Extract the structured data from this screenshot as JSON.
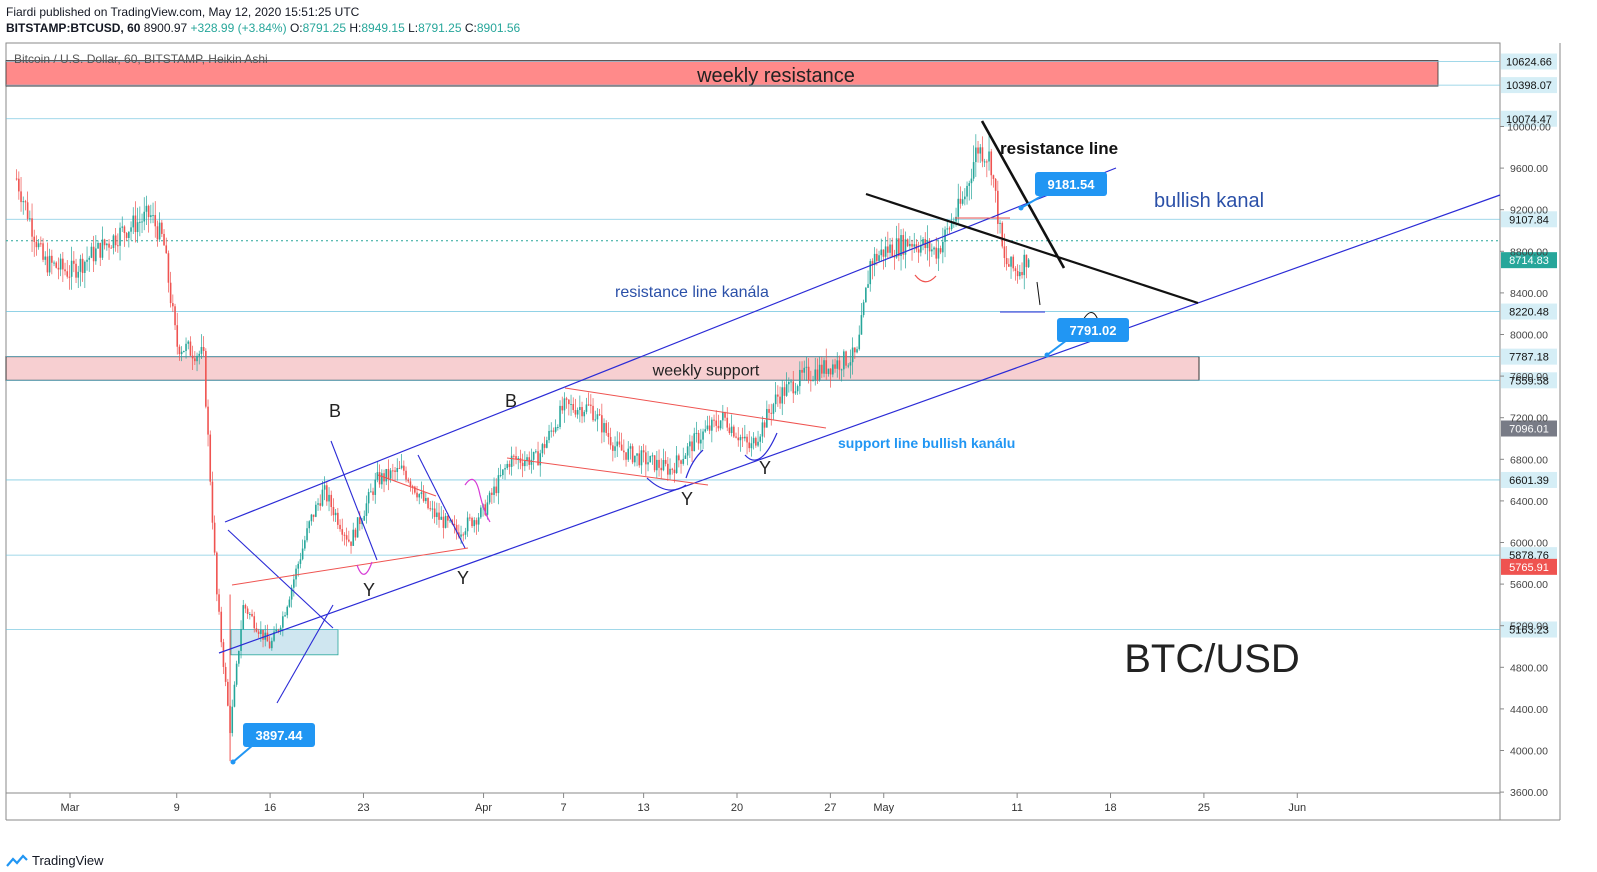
{
  "header": {
    "publisher_line": "Fiardi published on TradingView.com, May 12, 2020 15:51:25 UTC",
    "symbol": "BITSTAMP:BTCUSD, 60",
    "last": "8900.97",
    "change": "+328.99 (+3.84%)",
    "o_label": "O:",
    "o": "8791.25",
    "h_label": "H:",
    "h": "8949.15",
    "l_label": "L:",
    "l": "8791.25",
    "c_label": "C:",
    "c": "8901.56"
  },
  "footer": {
    "brand": "TradingView"
  },
  "colors": {
    "up": "#26a69a",
    "down": "#ef5350",
    "trend": "#2b2bd6",
    "accent": "#2196f3"
  },
  "chart_data": {
    "type": "candlestick",
    "title": "Bitcoin / U.S. Dollar, 60, BITSTAMP, Heikin Ashi",
    "watermark": "BTC/USD",
    "ylim": [
      3600,
      10900
    ],
    "x_ticks": [
      "Mar",
      "9",
      "16",
      "23",
      "Apr",
      "7",
      "13",
      "20",
      "27",
      "May",
      "11",
      "18",
      "25",
      "Jun"
    ],
    "y_ticks": [
      3600,
      4000,
      4400,
      4800,
      5200,
      5600,
      6000,
      6400,
      6800,
      7200,
      7600,
      8000,
      8400,
      8800,
      9200,
      9600,
      10000
    ],
    "price_labels": [
      {
        "value": 10624.66,
        "kind": "level"
      },
      {
        "value": 10398.07,
        "kind": "level"
      },
      {
        "value": 10074.47,
        "kind": "level"
      },
      {
        "value": 9107.84,
        "kind": "level"
      },
      {
        "value": 8714.83,
        "kind": "current"
      },
      {
        "value": 8220.48,
        "kind": "level"
      },
      {
        "value": 7787.18,
        "kind": "level"
      },
      {
        "value": 7559.58,
        "kind": "level"
      },
      {
        "value": 7096.01,
        "kind": "gray"
      },
      {
        "value": 6601.39,
        "kind": "level"
      },
      {
        "value": 5878.76,
        "kind": "level"
      },
      {
        "value": 5765.91,
        "kind": "red"
      },
      {
        "value": 5163.23,
        "kind": "level"
      }
    ],
    "price_path": [
      [
        "Feb 26",
        9500
      ],
      [
        "Feb 28",
        8700
      ],
      [
        "Mar 1",
        8600
      ],
      [
        "Mar 3",
        8800
      ],
      [
        "Mar 5",
        9000
      ],
      [
        "Mar 7",
        9150
      ],
      [
        "Mar 8",
        8900
      ],
      [
        "Mar 9",
        7900
      ],
      [
        "Mar 11",
        7800
      ],
      [
        "Mar 12",
        5500
      ],
      [
        "Mar 13",
        4200
      ],
      [
        "Mar 14",
        5400
      ],
      [
        "Mar 16",
        5000
      ],
      [
        "Mar 17",
        5300
      ],
      [
        "Mar 19",
        6200
      ],
      [
        "Mar 20",
        6500
      ],
      [
        "Mar 22",
        6000
      ],
      [
        "Mar 24",
        6600
      ],
      [
        "Mar 26",
        6700
      ],
      [
        "Mar 28",
        6300
      ],
      [
        "Mar 30",
        6100
      ],
      [
        "Apr 1",
        6300
      ],
      [
        "Apr 3",
        6800
      ],
      [
        "Apr 5",
        6800
      ],
      [
        "Apr 7",
        7300
      ],
      [
        "Apr 9",
        7300
      ],
      [
        "Apr 11",
        6900
      ],
      [
        "Apr 13",
        6800
      ],
      [
        "Apr 15",
        6700
      ],
      [
        "Apr 17",
        7000
      ],
      [
        "Apr 19",
        7200
      ],
      [
        "Apr 21",
        6900
      ],
      [
        "Apr 23",
        7400
      ],
      [
        "Apr 25",
        7600
      ],
      [
        "Apr 27",
        7700
      ],
      [
        "Apr 29",
        7800
      ],
      [
        "Apr 30",
        8700
      ],
      [
        "May 1",
        8800
      ],
      [
        "May 3",
        8900
      ],
      [
        "May 5",
        8800
      ],
      [
        "May 7",
        9300
      ],
      [
        "May 8",
        9800
      ],
      [
        "May 9",
        9700
      ],
      [
        "May 10",
        8700
      ],
      [
        "May 11",
        8600
      ],
      [
        "May 12",
        8800
      ]
    ],
    "annotations": [
      {
        "text": "weekly resistance",
        "kind": "zone",
        "from": 10398.07,
        "to": 10624.66
      },
      {
        "text": "weekly support",
        "kind": "zone",
        "from": 7559.58,
        "to": 7787.18
      },
      {
        "text": "resistance line",
        "kind": "label"
      },
      {
        "text": "bullish kanal",
        "kind": "label"
      },
      {
        "text": "resistance line kanála",
        "kind": "label"
      },
      {
        "text": "support line bullish kanálu",
        "kind": "label"
      },
      {
        "text": "B",
        "kind": "wave"
      },
      {
        "text": "B",
        "kind": "wave"
      },
      {
        "text": "Y",
        "kind": "wave"
      },
      {
        "text": "Y",
        "kind": "wave"
      },
      {
        "text": "Y",
        "kind": "wave"
      },
      {
        "text": "Y",
        "kind": "wave"
      }
    ],
    "callouts": [
      "9181.54",
      "7791.02",
      "3897.44"
    ]
  }
}
